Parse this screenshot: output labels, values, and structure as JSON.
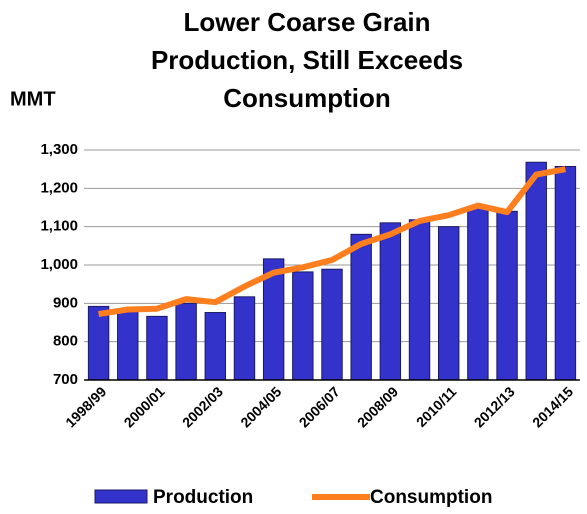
{
  "chart_data": {
    "type": "bar",
    "title": [
      "Lower Coarse Grain",
      "Production, Still Exceeds",
      "Consumption"
    ],
    "y_label": "MMT",
    "categories": [
      "1998/99",
      null,
      "2000/01",
      null,
      "2002/03",
      null,
      "2004/05",
      null,
      "2006/07",
      null,
      "2008/09",
      null,
      "2010/11",
      null,
      "2012/13",
      null,
      "2014/15"
    ],
    "series": [
      {
        "name": "Production",
        "type": "bar",
        "color": "#3333cc",
        "values": [
          892,
          880,
          866,
          900,
          876,
          917,
          1016,
          982,
          989,
          1080,
          1110,
          1118,
          1100,
          1152,
          1140,
          1268,
          1257
        ]
      },
      {
        "name": "Consumption",
        "type": "line",
        "color": "#ff7f1f",
        "values": [
          872,
          884,
          886,
          911,
          903,
          944,
          980,
          994,
          1013,
          1055,
          1080,
          1115,
          1130,
          1155,
          1138,
          1236,
          1250
        ]
      }
    ],
    "ylim": [
      700,
      1300
    ],
    "yticks": [
      700,
      800,
      900,
      {
        "value": 1000,
        "label": "1,000"
      },
      {
        "value": 1100,
        "label": "1,100"
      },
      {
        "value": 1200,
        "label": "1,200"
      },
      {
        "value": 1300,
        "label": "1,300"
      }
    ],
    "grid": true,
    "legend": "bottom"
  }
}
